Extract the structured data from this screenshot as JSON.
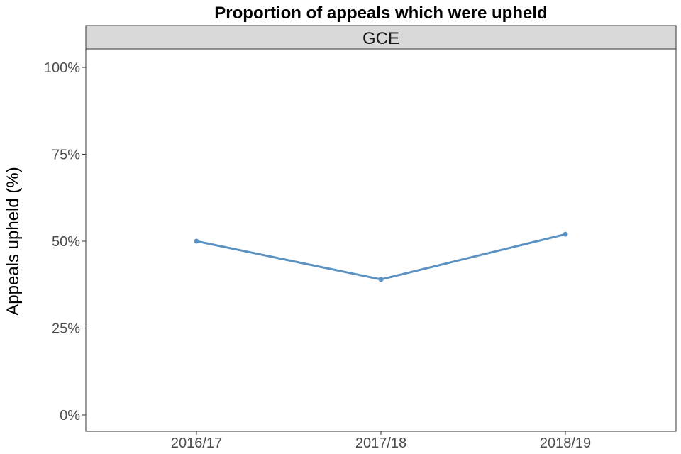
{
  "chart_data": {
    "type": "line",
    "title": "Proportion of appeals which were upheld",
    "facet": "GCE",
    "xlabel": "",
    "ylabel": "Appeals upheld (%)",
    "categories": [
      "2016/17",
      "2017/18",
      "2018/19"
    ],
    "values": [
      50,
      39,
      52
    ],
    "ylim": [
      0,
      100
    ],
    "yticks": [
      0,
      25,
      50,
      75,
      100
    ],
    "ytick_labels": [
      "0%",
      "25%",
      "50%",
      "75%",
      "100%"
    ],
    "grid": false,
    "legend": "none",
    "line_color": "#5b92c1"
  }
}
